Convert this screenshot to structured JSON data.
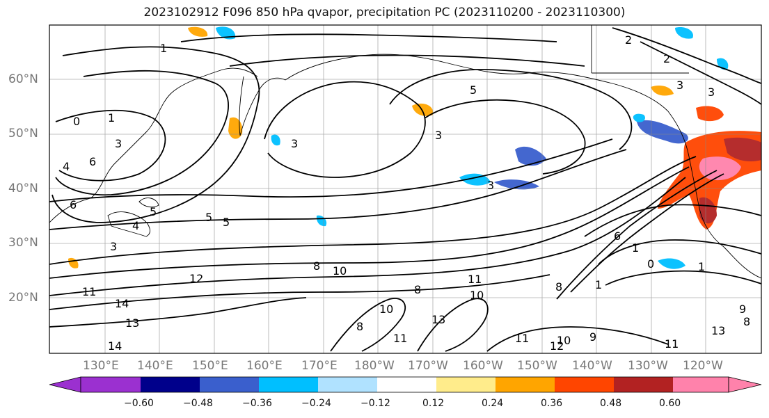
{
  "title": "2023102912 F096 850 hPa qvapor, precipitation PC (2023110200 - 2023110300)",
  "lat_labels": [
    "60°N",
    "50°N",
    "40°N",
    "30°N",
    "20°N"
  ],
  "lon_labels": [
    "130°E",
    "140°E",
    "150°E",
    "160°E",
    "170°E",
    "180°W",
    "170°W",
    "160°W",
    "150°W",
    "140°W",
    "130°W",
    "120°W"
  ],
  "colorbar": {
    "ticks": [
      "−0.60",
      "−0.48",
      "−0.36",
      "−0.24",
      "−0.12",
      "0.12",
      "0.24",
      "0.36",
      "0.48",
      "0.60"
    ],
    "colors": [
      "#9b30d0",
      "#00008b",
      "#3a5fcd",
      "#00bfff",
      "#b0e2ff",
      "#ffffff",
      "#ffec8b",
      "#ffa500",
      "#ff4500",
      "#b22222",
      "#ff82ab"
    ]
  },
  "contour_labels": [
    {
      "text": "1"
    },
    {
      "text": "0"
    },
    {
      "text": "1"
    },
    {
      "text": "3"
    },
    {
      "text": "6"
    },
    {
      "text": "4"
    },
    {
      "text": "5"
    },
    {
      "text": "5"
    },
    {
      "text": "6"
    },
    {
      "text": "3"
    },
    {
      "text": "3"
    },
    {
      "text": "4"
    },
    {
      "text": "3"
    },
    {
      "text": "3"
    },
    {
      "text": "5"
    },
    {
      "text": "2"
    },
    {
      "text": "2"
    },
    {
      "text": "3"
    },
    {
      "text": "3"
    },
    {
      "text": "5"
    },
    {
      "text": "1"
    },
    {
      "text": "0"
    },
    {
      "text": "8"
    },
    {
      "text": "10"
    },
    {
      "text": "12"
    },
    {
      "text": "11"
    },
    {
      "text": "14"
    },
    {
      "text": "13"
    },
    {
      "text": "14"
    },
    {
      "text": "11"
    },
    {
      "text": "8"
    },
    {
      "text": "10"
    },
    {
      "text": "13"
    },
    {
      "text": "11"
    },
    {
      "text": "10"
    },
    {
      "text": "8"
    },
    {
      "text": "11"
    },
    {
      "text": "12"
    },
    {
      "text": "10"
    },
    {
      "text": "9"
    },
    {
      "text": "11"
    },
    {
      "text": "13"
    },
    {
      "text": "9"
    },
    {
      "text": "8"
    },
    {
      "text": "8"
    },
    {
      "text": "1"
    },
    {
      "text": "1"
    },
    {
      "text": "6"
    }
  ]
}
